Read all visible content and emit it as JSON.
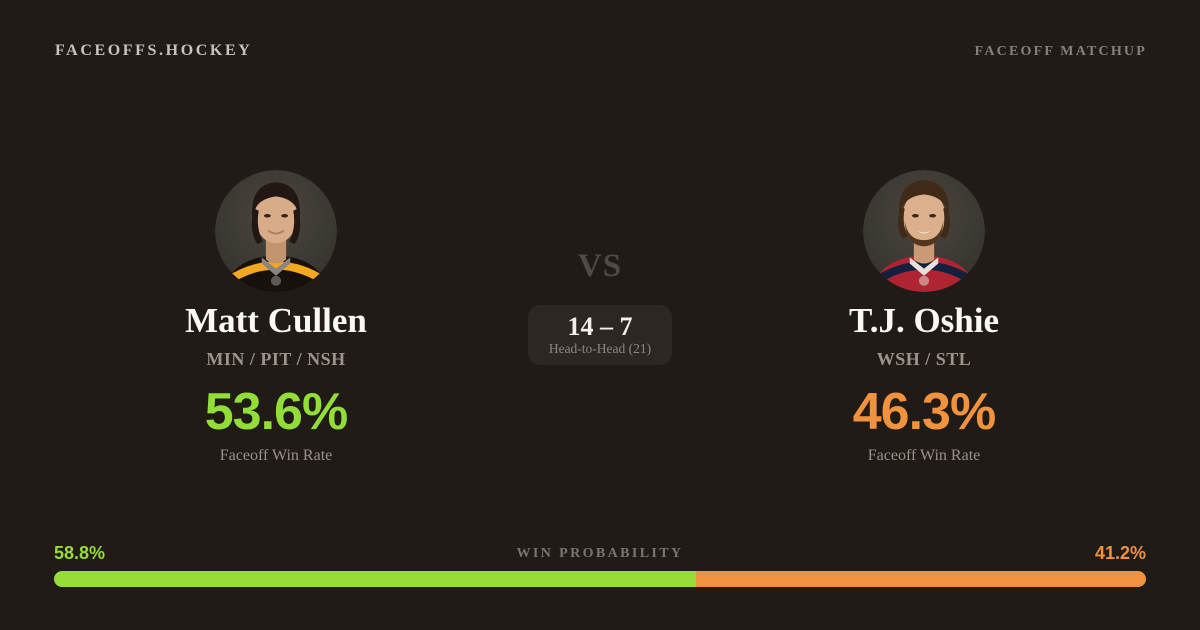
{
  "header": {
    "logo": "FACEOFFS.HOCKEY",
    "badge": "FACEOFF MATCHUP"
  },
  "players": {
    "left": {
      "name": "Matt Cullen",
      "teams": "MIN / PIT / NSH",
      "win_rate": "53.6%",
      "win_rate_label": "Faceoff Win Rate",
      "accent": "#92dd37"
    },
    "right": {
      "name": "T.J. Oshie",
      "teams": "WSH / STL",
      "win_rate": "46.3%",
      "win_rate_label": "Faceoff Win Rate",
      "accent": "#f0923e"
    }
  },
  "matchup": {
    "vs": "VS",
    "score": "14 – 7",
    "score_label": "Head-to-Head (21)"
  },
  "win_probability": {
    "title": "WIN PROBABILITY",
    "left_pct": "58.8%",
    "right_pct": "41.2%",
    "left_value": 58.8,
    "right_value": 41.2,
    "left_color": "#97dc38",
    "right_color": "#f0923e"
  }
}
